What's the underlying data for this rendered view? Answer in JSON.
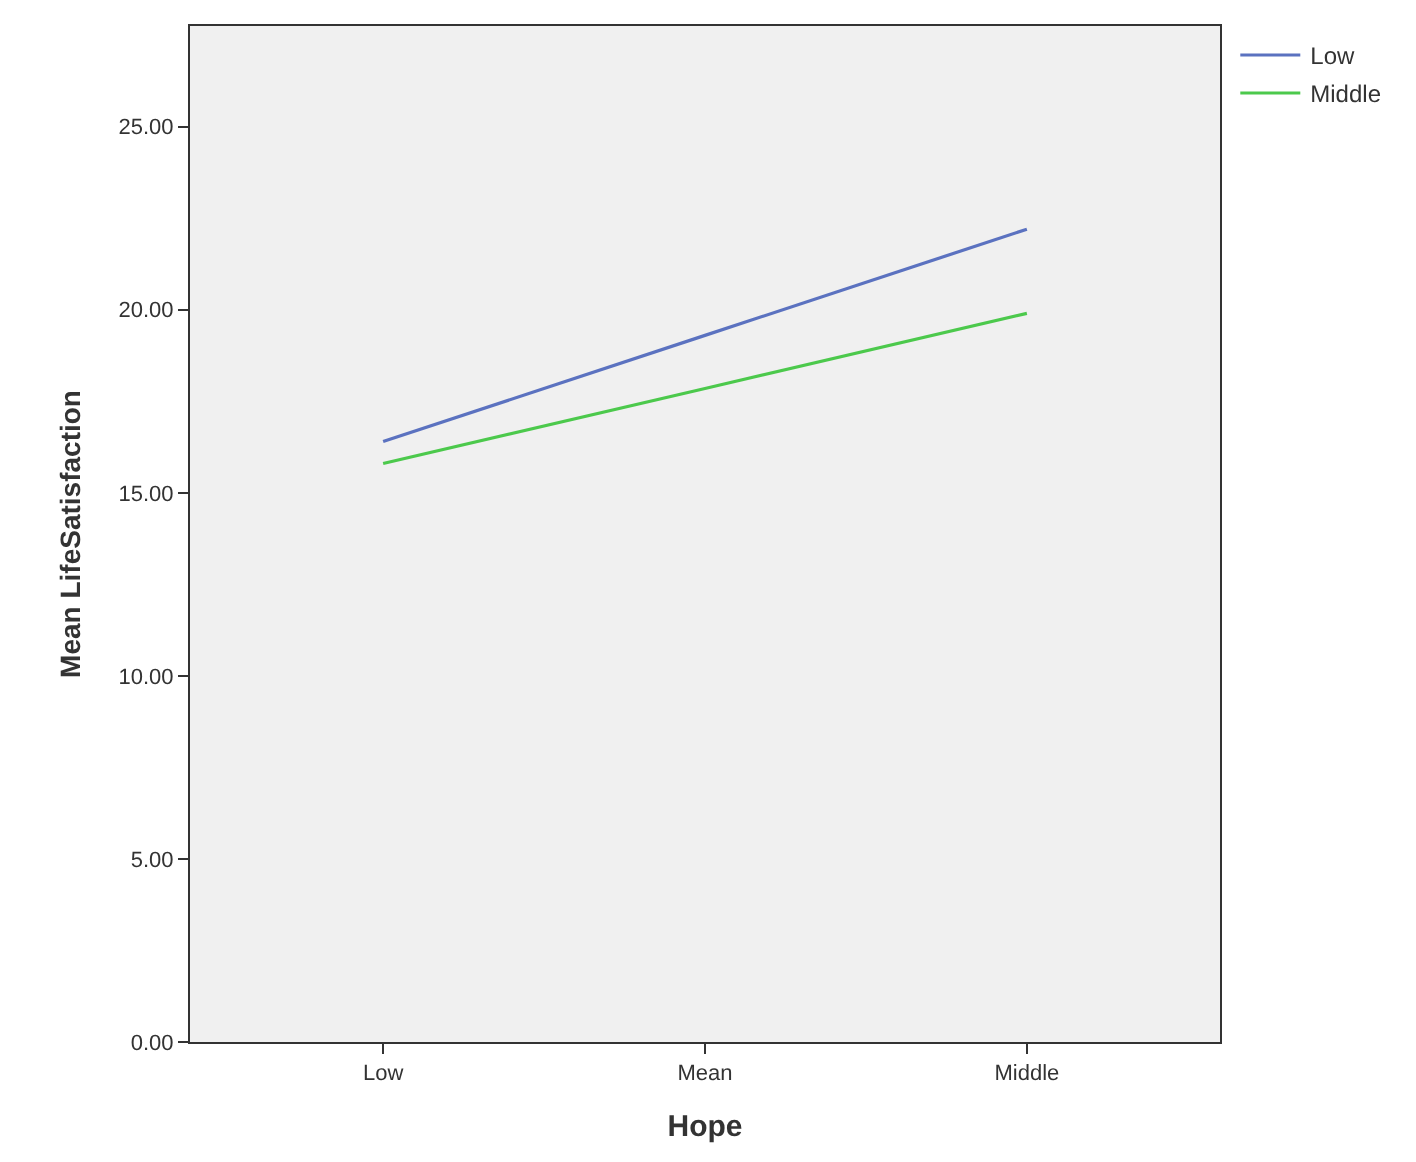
{
  "chart_data": {
    "type": "line",
    "xlabel": "Hope",
    "ylabel": "Mean LifeSatisfaction",
    "categories": [
      "Low",
      "Mean",
      "Middle"
    ],
    "series": [
      {
        "name": "Low",
        "color": "#5b72c0",
        "values": [
          16.4,
          19.3,
          22.2
        ]
      },
      {
        "name": "Middle",
        "color": "#4cc94c",
        "values": [
          15.8,
          17.85,
          19.9
        ]
      }
    ],
    "ylim": [
      0,
      27.75
    ],
    "yticks": [
      {
        "value": 0,
        "label": "0.00"
      },
      {
        "value": 5,
        "label": "5.00"
      },
      {
        "value": 10,
        "label": "10.00"
      },
      {
        "value": 15,
        "label": "15.00"
      },
      {
        "value": 20,
        "label": "20.00"
      },
      {
        "value": 25,
        "label": "25.00"
      }
    ],
    "grid": false,
    "legend": "top right",
    "marker": "none",
    "line_style": "solid"
  }
}
